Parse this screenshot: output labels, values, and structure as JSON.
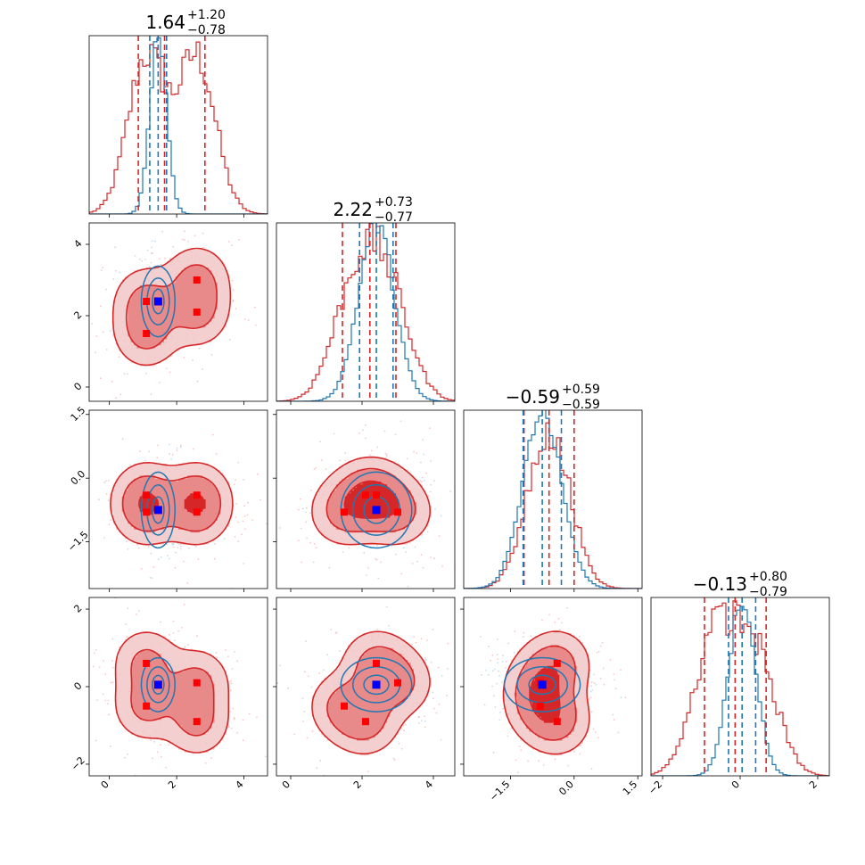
{
  "chart_data": {
    "type": "corner",
    "n_params": 4,
    "colors": {
      "red": "#d62728",
      "blue": "#1f77b4",
      "red_marker": "#ff0000",
      "blue_marker": "#0000ff"
    },
    "ranges": [
      [
        -0.6,
        4.7
      ],
      [
        -0.4,
        4.6
      ],
      [
        -2.6,
        1.6
      ],
      [
        -2.3,
        2.3
      ]
    ],
    "ticks": [
      [
        0,
        2,
        4
      ],
      [
        0,
        2,
        4
      ],
      [
        -1.5,
        0.0,
        1.5
      ],
      [
        -2,
        0,
        2
      ]
    ],
    "tick_labels": [
      [
        "0",
        "2",
        "4"
      ],
      [
        "0",
        "2",
        "4"
      ],
      [
        "−1.5",
        "0.0",
        "1.5"
      ],
      [
        "−2",
        "0",
        "2"
      ]
    ],
    "titles": [
      {
        "value": "1.64",
        "plus": "+1.20",
        "minus": "−0.78"
      },
      {
        "value": "2.22",
        "plus": "+0.73",
        "minus": "−0.77"
      },
      {
        "value": "−0.59",
        "plus": "+0.59",
        "minus": "−0.59"
      },
      {
        "value": "−0.13",
        "plus": "+0.80",
        "minus": "−0.79"
      }
    ],
    "red_dist": {
      "components": [
        {
          "weight": 0.25,
          "mean": [
            1.1,
            1.5,
            -0.8,
            -0.5
          ]
        },
        {
          "weight": 0.25,
          "mean": [
            1.1,
            2.4,
            -0.4,
            0.6
          ]
        },
        {
          "weight": 0.25,
          "mean": [
            2.6,
            2.1,
            -0.4,
            -0.9
          ]
        },
        {
          "weight": 0.25,
          "mean": [
            2.6,
            3.0,
            -0.8,
            0.1
          ]
        }
      ],
      "sigma": [
        0.55,
        0.55,
        0.45,
        0.5
      ],
      "quantiles": [
        [
          0.86,
          1.64,
          2.84
        ],
        [
          1.45,
          2.22,
          2.95
        ],
        [
          -1.18,
          -0.59,
          0.0
        ],
        [
          -0.92,
          -0.13,
          0.67
        ]
      ]
    },
    "blue_dist": {
      "mean": [
        1.45,
        2.4,
        -0.75,
        0.05
      ],
      "sigma": [
        0.25,
        0.5,
        0.45,
        0.35
      ],
      "quantiles": [
        [
          1.2,
          1.45,
          1.7
        ],
        [
          1.93,
          2.4,
          2.87
        ],
        [
          -1.2,
          -0.75,
          -0.3
        ],
        [
          -0.3,
          0.05,
          0.4
        ]
      ]
    },
    "red_markers": [
      [
        1.1,
        1.5,
        -0.8,
        -0.5
      ],
      [
        1.1,
        2.4,
        -0.4,
        0.6
      ],
      [
        2.6,
        2.1,
        -0.4,
        -0.9
      ],
      [
        2.6,
        3.0,
        -0.8,
        0.1
      ]
    ],
    "blue_marker": [
      1.45,
      2.4,
      -0.75,
      0.05
    ]
  }
}
